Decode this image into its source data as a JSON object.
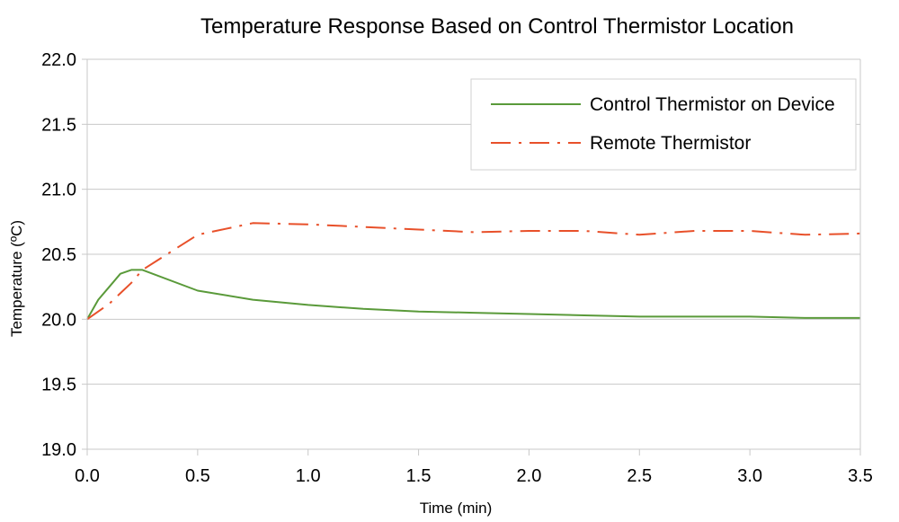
{
  "chart_data": {
    "type": "line",
    "title": "Temperature Response Based on Control Thermistor Location",
    "xlabel": "Time (min)",
    "ylabel": "Temperature (ºC)",
    "xlim": [
      0,
      3.5
    ],
    "ylim": [
      19.0,
      22.0
    ],
    "x_ticks": [
      "0.0",
      "0.5",
      "1.0",
      "1.5",
      "2.0",
      "2.5",
      "3.0",
      "3.5"
    ],
    "y_ticks": [
      "19.0",
      "19.5",
      "20.0",
      "20.5",
      "21.0",
      "21.5",
      "22.0"
    ],
    "grid": "horizontal",
    "legend_position": "top-right",
    "series": [
      {
        "name": "Control Thermistor on Device",
        "color": "#5a9a3a",
        "style": "solid",
        "x": [
          0,
          0.05,
          0.1,
          0.15,
          0.2,
          0.25,
          0.5,
          0.75,
          1.0,
          1.25,
          1.5,
          1.75,
          2.0,
          2.25,
          2.5,
          2.75,
          3.0,
          3.25,
          3.5
        ],
        "y": [
          20.0,
          20.15,
          20.25,
          20.35,
          20.38,
          20.38,
          20.22,
          20.15,
          20.11,
          20.08,
          20.06,
          20.05,
          20.04,
          20.03,
          20.02,
          20.02,
          20.02,
          20.01,
          20.01
        ]
      },
      {
        "name": "Remote Thermistor",
        "color": "#e8502a",
        "style": "dash-dot",
        "x": [
          0,
          0.1,
          0.2,
          0.25,
          0.5,
          0.75,
          1.0,
          1.25,
          1.5,
          1.75,
          2.0,
          2.25,
          2.5,
          2.75,
          3.0,
          3.25,
          3.5
        ],
        "y": [
          20.0,
          20.12,
          20.28,
          20.38,
          20.65,
          20.74,
          20.73,
          20.71,
          20.69,
          20.67,
          20.68,
          20.68,
          20.65,
          20.68,
          20.68,
          20.65,
          20.66
        ]
      }
    ]
  }
}
